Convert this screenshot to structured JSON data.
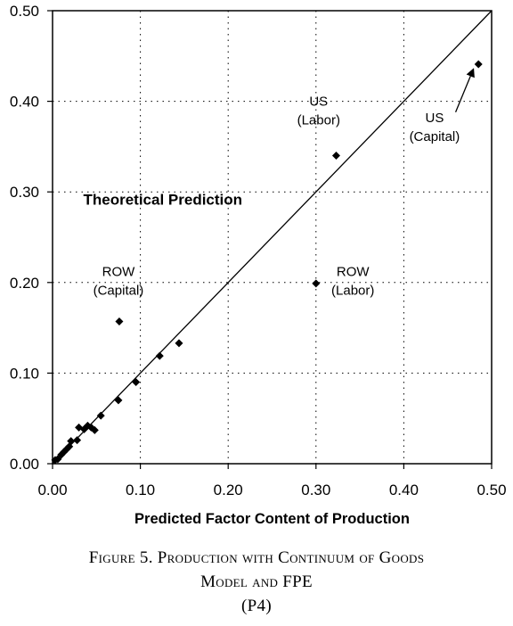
{
  "chart_data": {
    "type": "scatter",
    "title": "",
    "xlabel": "Predicted Factor Content of Production",
    "ylabel": "",
    "xlim": [
      0,
      0.5
    ],
    "ylim": [
      0,
      0.5
    ],
    "x_ticks": [
      "0.00",
      "0.10",
      "0.20",
      "0.30",
      "0.40",
      "0.50"
    ],
    "y_ticks": [
      "0.00",
      "0.10",
      "0.20",
      "0.30",
      "0.40",
      "0.50"
    ],
    "grid": true,
    "reference_line": {
      "label": "Theoretical Prediction",
      "from": [
        0,
        0
      ],
      "to": [
        0.5,
        0.5
      ]
    },
    "points": [
      {
        "x": 0.003,
        "y": 0.004
      },
      {
        "x": 0.006,
        "y": 0.005
      },
      {
        "x": 0.01,
        "y": 0.01
      },
      {
        "x": 0.013,
        "y": 0.013
      },
      {
        "x": 0.016,
        "y": 0.016
      },
      {
        "x": 0.019,
        "y": 0.019
      },
      {
        "x": 0.021,
        "y": 0.025
      },
      {
        "x": 0.028,
        "y": 0.026
      },
      {
        "x": 0.03,
        "y": 0.04
      },
      {
        "x": 0.036,
        "y": 0.038
      },
      {
        "x": 0.04,
        "y": 0.042
      },
      {
        "x": 0.044,
        "y": 0.04
      },
      {
        "x": 0.048,
        "y": 0.037
      },
      {
        "x": 0.055,
        "y": 0.053
      },
      {
        "x": 0.075,
        "y": 0.07
      },
      {
        "x": 0.076,
        "y": 0.157
      },
      {
        "x": 0.095,
        "y": 0.09
      },
      {
        "x": 0.122,
        "y": 0.119
      },
      {
        "x": 0.144,
        "y": 0.133
      },
      {
        "x": 0.3,
        "y": 0.199
      },
      {
        "x": 0.323,
        "y": 0.34
      },
      {
        "x": 0.485,
        "y": 0.441
      }
    ],
    "annotations": [
      {
        "lines": [
          "US",
          "(Labor)"
        ],
        "x": 0.303,
        "y": 0.395
      },
      {
        "lines": [
          "US",
          "(Capital)"
        ],
        "x": 0.435,
        "y": 0.377
      },
      {
        "lines": [
          "ROW",
          "(Capital)"
        ],
        "x": 0.075,
        "y": 0.207
      },
      {
        "lines": [
          "ROW",
          "(Labor)"
        ],
        "x": 0.342,
        "y": 0.207
      }
    ],
    "arrow": {
      "from": [
        0.459,
        0.388
      ],
      "to": [
        0.479,
        0.435
      ]
    }
  },
  "caption": {
    "line1": "Figure 5. Production with Continuum of Goods",
    "line2": "Model and FPE",
    "line3": "(P4)"
  }
}
